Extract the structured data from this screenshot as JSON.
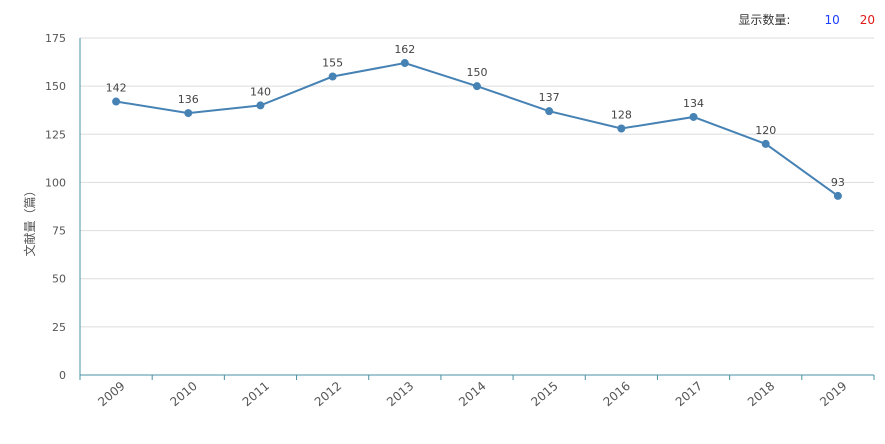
{
  "controls": {
    "display_count_label": "显示数量:",
    "options": [
      {
        "label": "10",
        "color": "#1a3dff"
      },
      {
        "label": "20",
        "color": "#e01818"
      }
    ]
  },
  "colors": {
    "line": "#4682b4",
    "axis": "#4a90a4",
    "grid": "#dddddd"
  },
  "chart_data": {
    "type": "line",
    "title": "",
    "xlabel": "",
    "ylabel": "文献量（篇）",
    "ylim": [
      0,
      175
    ],
    "yticks": [
      0,
      25,
      50,
      75,
      100,
      125,
      150,
      175
    ],
    "grid": true,
    "categories": [
      "2009",
      "2010",
      "2011",
      "2012",
      "2013",
      "2014",
      "2015",
      "2016",
      "2017",
      "2018",
      "2019"
    ],
    "values": [
      142,
      136,
      140,
      155,
      162,
      150,
      137,
      128,
      134,
      120,
      93
    ]
  }
}
